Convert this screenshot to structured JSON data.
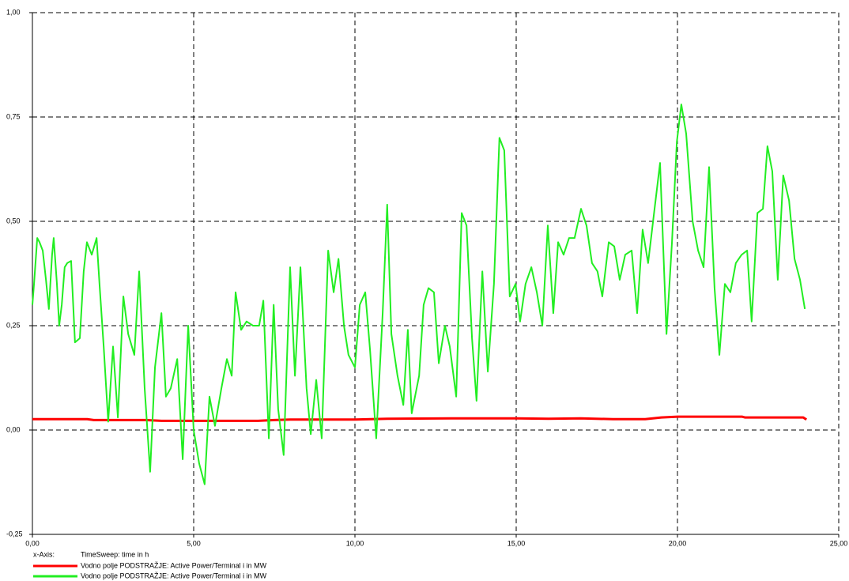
{
  "chart_data": {
    "type": "line",
    "xlim": [
      0,
      25
    ],
    "ylim": [
      -0.25,
      1.0
    ],
    "xticks": [
      {
        "value": 0,
        "label": "0,00"
      },
      {
        "value": 5,
        "label": "5,00"
      },
      {
        "value": 10,
        "label": "10,00"
      },
      {
        "value": 15,
        "label": "15,00"
      },
      {
        "value": 20,
        "label": "20,00"
      },
      {
        "value": 25,
        "label": "25,00"
      }
    ],
    "yticks": [
      {
        "value": -0.25,
        "label": "-0,25"
      },
      {
        "value": 0,
        "label": "0,00"
      },
      {
        "value": 0.25,
        "label": "0,25"
      },
      {
        "value": 0.5,
        "label": "0,50"
      },
      {
        "value": 0.75,
        "label": "0,75"
      },
      {
        "value": 1.0,
        "label": "1,00"
      }
    ],
    "grid": true,
    "x_axis_legend": {
      "label": "x-Axis:",
      "text": "TimeSweep: time in h"
    },
    "series": [
      {
        "name": "Vodno polje PODSTRAŽJE: Active Power/Terminal i in MW",
        "color": "#ff0000",
        "x": [
          0,
          1.7,
          1.9,
          3.5,
          4,
          5,
          7,
          7.5,
          8,
          10,
          11,
          13,
          15,
          16,
          17,
          18,
          19,
          19.5,
          20,
          22,
          22.1,
          23.9,
          24
        ],
        "values": [
          0.026,
          0.026,
          0.024,
          0.024,
          0.022,
          0.022,
          0.022,
          0.024,
          0.025,
          0.025,
          0.027,
          0.028,
          0.028,
          0.027,
          0.028,
          0.026,
          0.026,
          0.03,
          0.032,
          0.032,
          0.03,
          0.03,
          0.025
        ]
      },
      {
        "name": "Vodno polje PODSTRAŽJE: Active Power/Terminal i in MW",
        "color": "#22ee22",
        "x": [
          0.0,
          0.05,
          0.15,
          0.22,
          0.32,
          0.42,
          0.51,
          0.61,
          0.66,
          0.76,
          0.83,
          0.91,
          1.0,
          1.08,
          1.2,
          1.32,
          1.47,
          1.59,
          1.69,
          1.84,
          1.99,
          2.08,
          2.21,
          2.35,
          2.5,
          2.65,
          2.82,
          2.97,
          3.16,
          3.31,
          3.48,
          3.65,
          3.8,
          4.0,
          4.14,
          4.29,
          4.49,
          4.66,
          4.83,
          5.0,
          5.17,
          5.34,
          5.49,
          5.66,
          5.86,
          6.03,
          6.18,
          6.3,
          6.47,
          6.64,
          6.84,
          7.03,
          7.16,
          7.33,
          7.48,
          7.62,
          7.79,
          7.99,
          8.14,
          8.31,
          8.5,
          8.63,
          8.8,
          8.97,
          9.17,
          9.34,
          9.49,
          9.66,
          9.8,
          10.0,
          10.15,
          10.32,
          10.47,
          10.66,
          10.86,
          11.0,
          11.13,
          11.32,
          11.5,
          11.64,
          11.76,
          11.99,
          12.13,
          12.28,
          12.45,
          12.6,
          12.79,
          12.94,
          13.14,
          13.31,
          13.46,
          13.63,
          13.77,
          13.95,
          14.12,
          14.31,
          14.48,
          14.63,
          14.8,
          14.98,
          15.12,
          15.29,
          15.47,
          15.64,
          15.81,
          15.98,
          16.15,
          16.3,
          16.47,
          16.64,
          16.81,
          17.01,
          17.18,
          17.35,
          17.52,
          17.67,
          17.87,
          18.04,
          18.21,
          18.38,
          18.58,
          18.75,
          18.92,
          19.09,
          19.29,
          19.46,
          19.66,
          19.83,
          19.98,
          20.12,
          20.27,
          20.47,
          20.64,
          20.81,
          20.98,
          21.15,
          21.3,
          21.47,
          21.64,
          21.81,
          21.99,
          22.16,
          22.3,
          22.48,
          22.65,
          22.79,
          22.94,
          23.11,
          23.28,
          23.46,
          23.63,
          23.8,
          23.95
        ],
        "values": [
          0.3,
          0.35,
          0.46,
          0.45,
          0.43,
          0.36,
          0.29,
          0.42,
          0.46,
          0.35,
          0.25,
          0.3,
          0.39,
          0.4,
          0.405,
          0.21,
          0.22,
          0.38,
          0.45,
          0.42,
          0.46,
          0.35,
          0.2,
          0.02,
          0.2,
          0.03,
          0.32,
          0.23,
          0.18,
          0.38,
          0.1,
          -0.1,
          0.15,
          0.28,
          0.08,
          0.1,
          0.17,
          -0.07,
          0.25,
          0.0,
          -0.08,
          -0.13,
          0.08,
          0.01,
          0.1,
          0.17,
          0.13,
          0.33,
          0.24,
          0.26,
          0.25,
          0.25,
          0.31,
          -0.02,
          0.3,
          0.05,
          -0.06,
          0.39,
          0.13,
          0.39,
          0.1,
          -0.01,
          0.12,
          -0.02,
          0.43,
          0.33,
          0.41,
          0.25,
          0.18,
          0.15,
          0.3,
          0.33,
          0.19,
          -0.02,
          0.28,
          0.54,
          0.23,
          0.13,
          0.06,
          0.24,
          0.04,
          0.13,
          0.3,
          0.34,
          0.33,
          0.16,
          0.25,
          0.2,
          0.08,
          0.52,
          0.49,
          0.22,
          0.07,
          0.38,
          0.14,
          0.35,
          0.7,
          0.67,
          0.32,
          0.35,
          0.26,
          0.35,
          0.39,
          0.33,
          0.25,
          0.49,
          0.28,
          0.45,
          0.42,
          0.46,
          0.46,
          0.53,
          0.49,
          0.4,
          0.38,
          0.32,
          0.45,
          0.44,
          0.36,
          0.42,
          0.43,
          0.28,
          0.48,
          0.4,
          0.53,
          0.64,
          0.23,
          0.45,
          0.69,
          0.78,
          0.71,
          0.5,
          0.43,
          0.39,
          0.63,
          0.34,
          0.18,
          0.35,
          0.33,
          0.4,
          0.42,
          0.43,
          0.26,
          0.52,
          0.53,
          0.68,
          0.62,
          0.36,
          0.61,
          0.55,
          0.41,
          0.36,
          0.29
        ]
      }
    ]
  }
}
